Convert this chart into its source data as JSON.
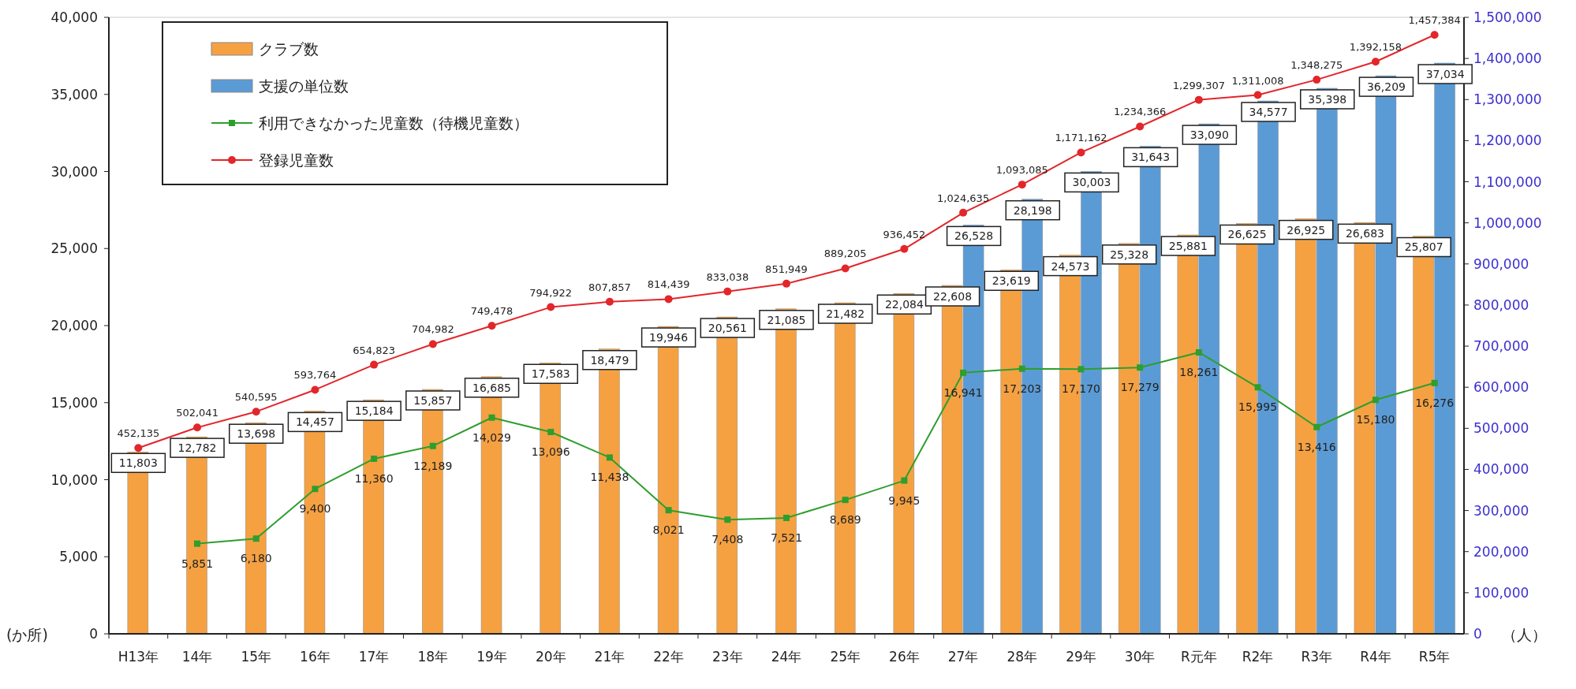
{
  "chart_data": {
    "type": "bar",
    "categories": [
      "H13年",
      "14年",
      "15年",
      "16年",
      "17年",
      "18年",
      "19年",
      "20年",
      "21年",
      "22年",
      "23年",
      "24年",
      "25年",
      "26年",
      "27年",
      "28年",
      "29年",
      "30年",
      "R元年",
      "R2年",
      "R3年",
      "R4年",
      "R5年"
    ],
    "series": [
      {
        "name": "クラブ数",
        "color": "#f5a142",
        "values": [
          11803,
          12782,
          13698,
          14457,
          15184,
          15857,
          16685,
          17583,
          18479,
          19946,
          20561,
          21085,
          21482,
          22084,
          22608,
          23619,
          24573,
          25328,
          25881,
          26625,
          26925,
          26683,
          25807
        ],
        "value_labels": [
          "11,803",
          "12,782",
          "13,698",
          "14,457",
          "15,184",
          "15,857",
          "16,685",
          "17,583",
          "18,479",
          "19,946",
          "20,561",
          "21,085",
          "21,482",
          "22,084",
          "22,608",
          "23,619",
          "24,573",
          "25,328",
          "25,881",
          "26,625",
          "26,925",
          "26,683",
          "25,807"
        ]
      },
      {
        "name": "支援の単位数",
        "color": "#5b9bd5",
        "values": [
          null,
          null,
          null,
          null,
          null,
          null,
          null,
          null,
          null,
          null,
          null,
          null,
          null,
          null,
          26528,
          28198,
          30003,
          31643,
          33090,
          34577,
          35398,
          36209,
          37034
        ],
        "value_labels": [
          null,
          null,
          null,
          null,
          null,
          null,
          null,
          null,
          null,
          null,
          null,
          null,
          null,
          null,
          "26,528",
          "28,198",
          "30,003",
          "31,643",
          "33,090",
          "34,577",
          "35,398",
          "36,209",
          "37,034"
        ]
      },
      {
        "name": "利用できなかった児童数（待機児童数）",
        "type": "line",
        "color": "#2e9e2e",
        "marker": "square",
        "values": [
          null,
          5851,
          6180,
          9400,
          11360,
          12189,
          14029,
          13096,
          11438,
          8021,
          7408,
          7521,
          8689,
          9945,
          16941,
          17203,
          17170,
          17279,
          18261,
          15995,
          13416,
          15180,
          16276
        ],
        "value_labels": [
          null,
          "5,851",
          "6,180",
          "9,400",
          "11,360",
          "12,189",
          "14,029",
          "13,096",
          "11,438",
          "8,021",
          "7,408",
          "7,521",
          "8,689",
          "9,945",
          "16,941",
          "17,203",
          "17,170",
          "17,279",
          "18,261",
          "15,995",
          "13,416",
          "15,180",
          "16,276"
        ]
      },
      {
        "name": "登録児童数",
        "type": "line",
        "axis": "y2",
        "color": "#e3262a",
        "marker": "circle",
        "values": [
          452135,
          502041,
          540595,
          593764,
          654823,
          704982,
          749478,
          794922,
          807857,
          814439,
          833038,
          851949,
          889205,
          936452,
          1024635,
          1093085,
          1171162,
          1234366,
          1299307,
          1311008,
          1348275,
          1392158,
          1457384
        ],
        "value_labels": [
          "452,135",
          "502,041",
          "540,595",
          "593,764",
          "654,823",
          "704,982",
          "749,478",
          "794,922",
          "807,857",
          "814,439",
          "833,038",
          "851,949",
          "889,205",
          "936,452",
          "1,024,635",
          "1,093,085",
          "1,171,162",
          "1,234,366",
          "1,299,307",
          "1,311,008",
          "1,348,275",
          "1,392,158",
          "1,457,384"
        ]
      }
    ],
    "ylim": [
      0,
      40000
    ],
    "yticks": [
      0,
      {
        "value": 5000,
        "label": "5,000"
      },
      {
        "value": 10000,
        "label": "10,000"
      },
      {
        "value": 15000,
        "label": "15,000"
      },
      {
        "value": 20000,
        "label": "20,000"
      },
      {
        "value": 25000,
        "label": "25,000"
      },
      {
        "value": 30000,
        "label": "30,000"
      },
      {
        "value": 35000,
        "label": "35,000"
      },
      {
        "value": 40000,
        "label": "40,000"
      }
    ],
    "y2lim": [
      0,
      1500000
    ],
    "y2ticks": [
      0,
      {
        "value": 100000,
        "label": "100,000"
      },
      {
        "value": 200000,
        "label": "200,000"
      },
      {
        "value": 300000,
        "label": "300,000"
      },
      {
        "value": 400000,
        "label": "400,000"
      },
      {
        "value": 500000,
        "label": "500,000"
      },
      {
        "value": 600000,
        "label": "600,000"
      },
      {
        "value": 700000,
        "label": "700,000"
      },
      {
        "value": 800000,
        "label": "800,000"
      },
      {
        "value": 900000,
        "label": "900,000"
      },
      {
        "value": 1000000,
        "label": "1,000,000"
      },
      {
        "value": 1100000,
        "label": "1,100,000"
      },
      {
        "value": 1200000,
        "label": "1,200,000"
      },
      {
        "value": 1300000,
        "label": "1,300,000"
      },
      {
        "value": 1400000,
        "label": "1,400,000"
      },
      {
        "value": 1500000,
        "label": "1,500,000"
      }
    ],
    "ylabel": "(か所)",
    "y2label": "（人）",
    "legend": "top left",
    "grid": false
  }
}
